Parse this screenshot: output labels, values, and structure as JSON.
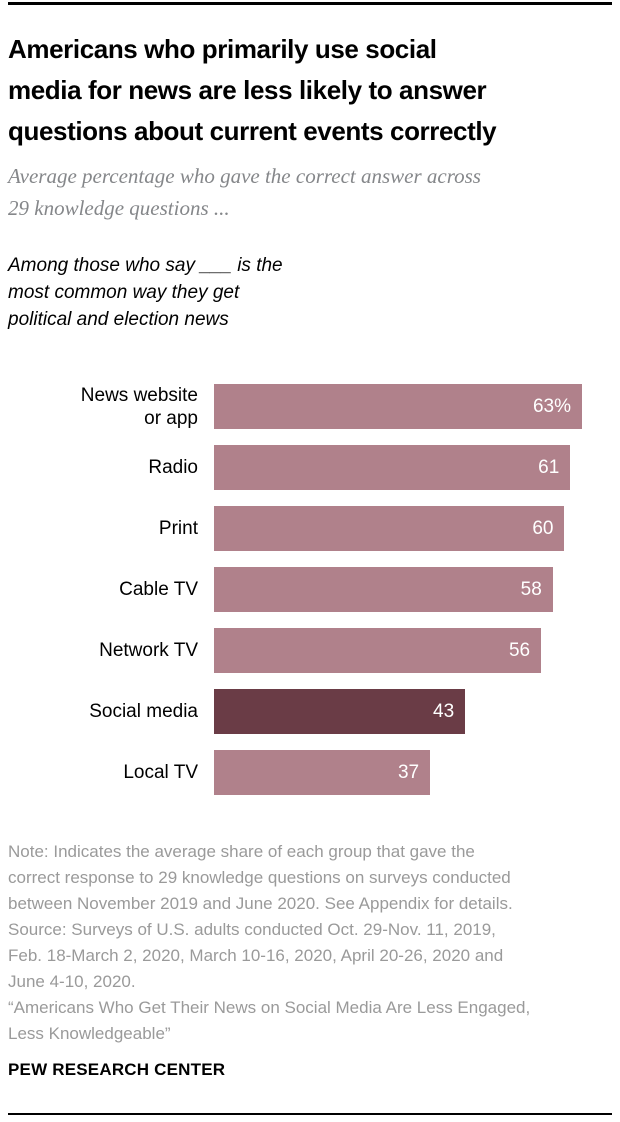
{
  "header": {
    "title": "Americans who primarily use social\nmedia for news are less likely to answer\nquestions about current events correctly",
    "subtitle": "Average percentage who gave the correct answer across\n29 knowledge questions ..."
  },
  "chart_data": {
    "type": "bar",
    "orientation": "horizontal",
    "annotation": "Among those who say ___ is the\nmost common way they get\npolitical and election news",
    "categories": [
      "News website\nor app",
      "Radio",
      "Print",
      "Cable TV",
      "Network TV",
      "Social media",
      "Local TV"
    ],
    "values": [
      63,
      61,
      60,
      58,
      56,
      43,
      37
    ],
    "display_values": [
      "63%",
      "61",
      "60",
      "58",
      "56",
      "43",
      "37"
    ],
    "xmax": 63,
    "unit": "percent",
    "grid": "off",
    "axes": "none",
    "value_labels": "inside-end, white",
    "highlighted_category": "Social media",
    "bar_color": "#b0818b",
    "highlight_color": "#6a3c46"
  },
  "footer": {
    "note": "Note: Indicates the average share of each group that gave the\ncorrect response to 29 knowledge questions on surveys conducted\nbetween November 2019 and June 2020. See Appendix for details.",
    "source": "Source: Surveys of U.S. adults conducted Oct. 29-Nov. 11, 2019,\nFeb. 18-March 2, 2020, March 10-16, 2020, April 20-26, 2020 and\nJune 4-10, 2020.",
    "report_title": "“Americans Who Get Their News on Social Media Are Less Engaged,\nLess Knowledgeable”",
    "brand": "PEW RESEARCH CENTER"
  }
}
